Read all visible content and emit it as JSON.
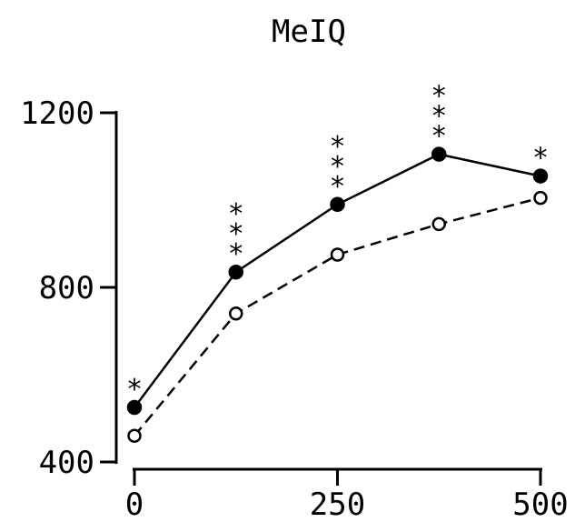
{
  "chart_data": {
    "type": "line",
    "title": "MeIQ",
    "xlabel": "",
    "ylabel": "",
    "x": [
      0,
      125,
      250,
      375,
      500
    ],
    "xticks": [
      0,
      250,
      500
    ],
    "xtick_labels": [
      "0",
      "250",
      "500"
    ],
    "yticks": [
      400,
      800,
      1200
    ],
    "ytick_labels": [
      "400",
      "800",
      "1200"
    ],
    "xlim": [
      0,
      500
    ],
    "ylim": [
      400,
      1200
    ],
    "grid": false,
    "legend": "none",
    "series": [
      {
        "key": "filled",
        "values": [
          525,
          835,
          990,
          1105,
          1055
        ],
        "line_style": "solid",
        "marker": "filled-circle",
        "color": "#000000",
        "annotations": [
          "*",
          "***",
          "***",
          "***",
          "*"
        ]
      },
      {
        "key": "open",
        "values": [
          460,
          740,
          875,
          945,
          1005
        ],
        "line_style": "dashed",
        "marker": "open-circle",
        "color": "#000000"
      }
    ]
  }
}
